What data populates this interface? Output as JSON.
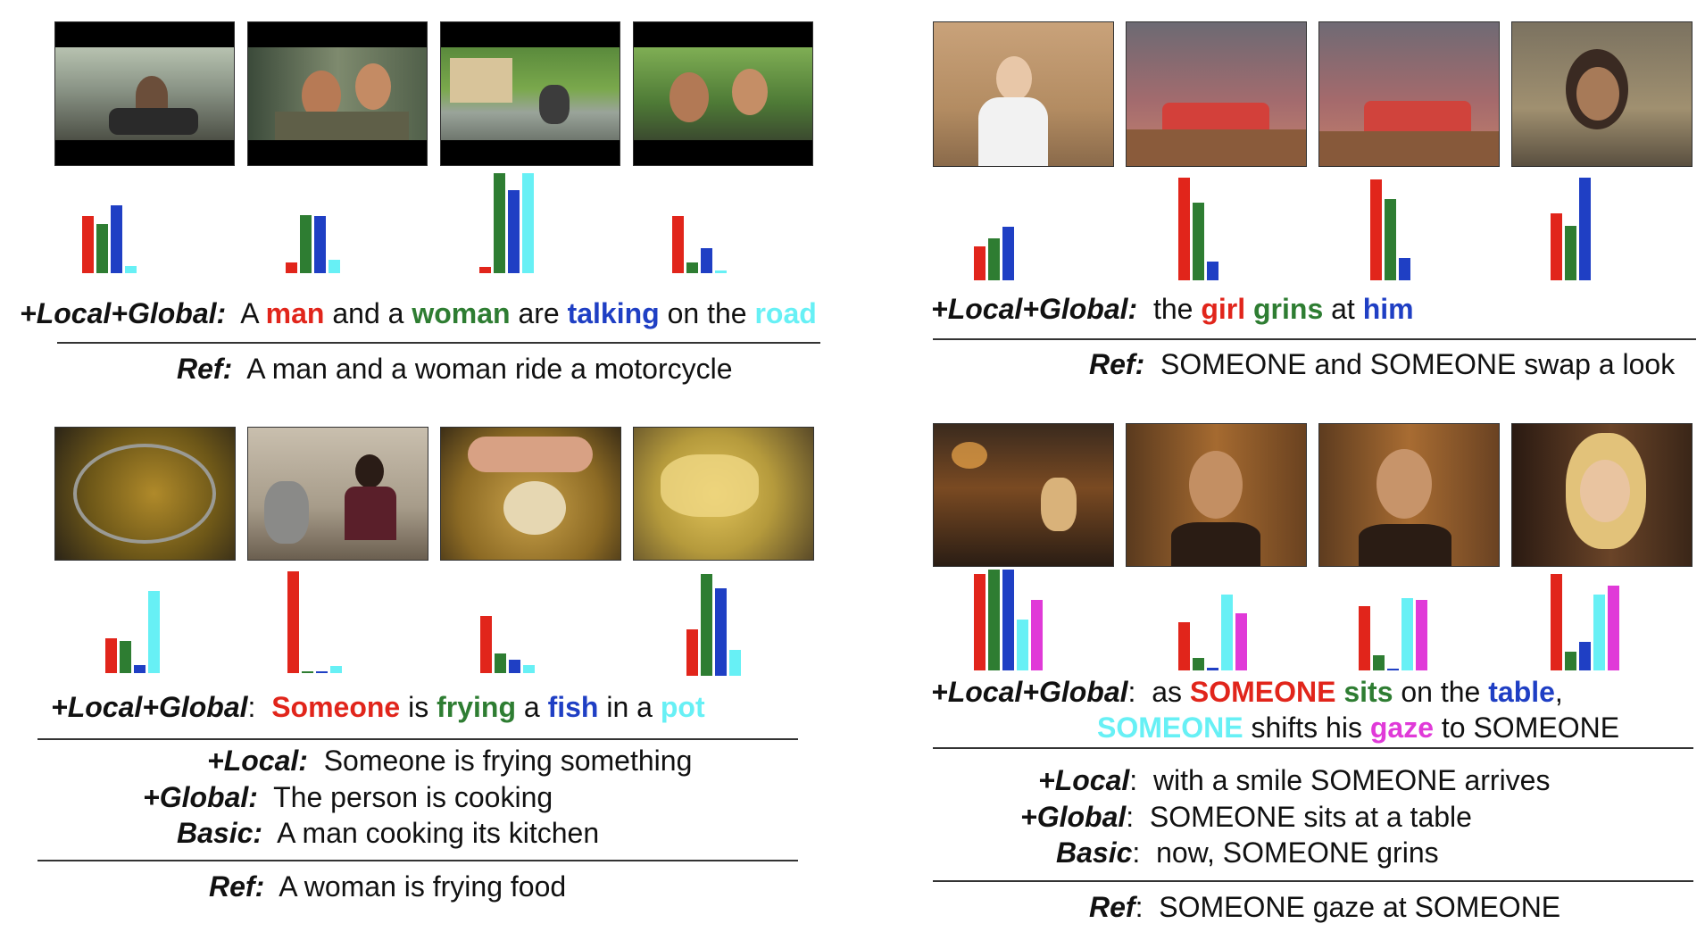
{
  "colors": {
    "red": "#e1251b",
    "green": "#2e7d32",
    "blue": "#1f3fc4",
    "cyan": "#67f0f5",
    "magenta": "#e03ad8"
  },
  "panels": [
    {
      "id": "top-left",
      "frames": [
        "motorcycle-frame-1",
        "motorcycle-frame-2",
        "motorcycle-frame-3",
        "motorcycle-frame-4"
      ],
      "bar_colors": [
        "red",
        "green",
        "blue",
        "cyan"
      ],
      "bars": [
        [
          0.68,
          0.58,
          0.81,
          0.08
        ],
        [
          0.13,
          0.69,
          0.68,
          0.16
        ],
        [
          0.06,
          1.0,
          0.83,
          1.0
        ],
        [
          0.68,
          0.13,
          0.3,
          0.03
        ]
      ],
      "caption": {
        "label": "+Local+Global:",
        "segments": [
          {
            "text": "A ",
            "color": ""
          },
          {
            "text": "man",
            "color": "red"
          },
          {
            "text": " and a ",
            "color": ""
          },
          {
            "text": "woman",
            "color": "green"
          },
          {
            "text": " are ",
            "color": ""
          },
          {
            "text": "talking",
            "color": "blue"
          },
          {
            "text": " on the ",
            "color": ""
          },
          {
            "text": "road",
            "color": "cyan"
          }
        ]
      },
      "others": [],
      "ref": {
        "label": "Ref:",
        "text": "A man and a woman ride a motorcycle"
      }
    },
    {
      "id": "top-right",
      "frames": [
        "girl-frame-1",
        "girl-frame-2",
        "girl-frame-3",
        "girl-frame-4"
      ],
      "bar_colors": [
        "red",
        "green",
        "blue"
      ],
      "bars": [
        [
          0.33,
          0.41,
          0.52
        ],
        [
          1.0,
          0.76,
          0.18
        ],
        [
          0.98,
          0.79,
          0.22
        ],
        [
          0.65,
          0.53,
          1.0
        ]
      ],
      "caption": {
        "label": "+Local+Global:",
        "segments": [
          {
            "text": "the ",
            "color": ""
          },
          {
            "text": "girl",
            "color": "red"
          },
          {
            "text": " ",
            "color": ""
          },
          {
            "text": "grins",
            "color": "green"
          },
          {
            "text": " at ",
            "color": ""
          },
          {
            "text": "him",
            "color": "blue"
          }
        ]
      },
      "others": [],
      "ref": {
        "label": "Ref:",
        "text": "SOMEONE and SOMEONE swap a look"
      }
    },
    {
      "id": "bottom-left",
      "frames": [
        "frying-frame-1",
        "frying-frame-2",
        "frying-frame-3",
        "frying-frame-4"
      ],
      "bar_colors": [
        "red",
        "green",
        "blue",
        "cyan"
      ],
      "bars": [
        [
          0.38,
          0.35,
          0.09,
          0.9
        ],
        [
          1.0,
          0.02,
          0.02,
          0.07
        ],
        [
          0.56,
          0.19,
          0.13,
          0.08
        ],
        [
          0.46,
          1.0,
          0.86,
          0.25
        ]
      ],
      "caption": {
        "label": "+Local+Global",
        "label_colon": ":",
        "segments": [
          {
            "text": "Someone",
            "color": "red"
          },
          {
            "text": " is ",
            "color": ""
          },
          {
            "text": "frying",
            "color": "green"
          },
          {
            "text": " a ",
            "color": ""
          },
          {
            "text": "fish",
            "color": "blue"
          },
          {
            "text": " in a ",
            "color": ""
          },
          {
            "text": "pot",
            "color": "cyan"
          }
        ]
      },
      "others": [
        {
          "label": "+Local:",
          "text": "Someone is frying something"
        },
        {
          "label": "+Global:",
          "text": "The person is cooking"
        },
        {
          "label": "Basic:",
          "text": "A man cooking its kitchen"
        }
      ],
      "ref": {
        "label": "Ref:",
        "text": "A woman is frying food"
      }
    },
    {
      "id": "bottom-right",
      "frames": [
        "table-frame-1",
        "table-frame-2",
        "table-frame-3",
        "table-frame-4"
      ],
      "bar_colors": [
        "red",
        "green",
        "blue",
        "cyan",
        "magenta"
      ],
      "bars": [
        [
          0.96,
          1.0,
          1.0,
          0.5,
          0.7
        ],
        [
          0.48,
          0.12,
          0.03,
          0.75,
          0.57
        ],
        [
          0.64,
          0.15,
          0.02,
          0.72,
          0.7
        ],
        [
          0.96,
          0.19,
          0.28,
          0.75,
          0.84
        ]
      ],
      "caption": {
        "label": "+Local+Global",
        "label_colon": ":",
        "segments": [
          {
            "text": "as ",
            "color": ""
          },
          {
            "text": "SOMEONE",
            "color": "red"
          },
          {
            "text": " ",
            "color": ""
          },
          {
            "text": "sits",
            "color": "green"
          },
          {
            "text": " on the ",
            "color": ""
          },
          {
            "text": "table",
            "color": "blue"
          },
          {
            "text": ",",
            "color": ""
          }
        ],
        "line2": [
          {
            "text": "SOMEONE",
            "color": "cyan"
          },
          {
            "text": " shifts his ",
            "color": ""
          },
          {
            "text": "gaze",
            "color": "magenta"
          },
          {
            "text": " to SOMEONE",
            "color": ""
          }
        ]
      },
      "others": [
        {
          "label": "+Local",
          "text": "with a smile SOMEONE arrives"
        },
        {
          "label": "+Global",
          "text": "SOMEONE sits at a table"
        },
        {
          "label": "Basic",
          "text": "now, SOMEONE grins"
        }
      ],
      "ref": {
        "label": "Ref",
        "text": "SOMEONE gaze at SOMEONE"
      }
    }
  ]
}
